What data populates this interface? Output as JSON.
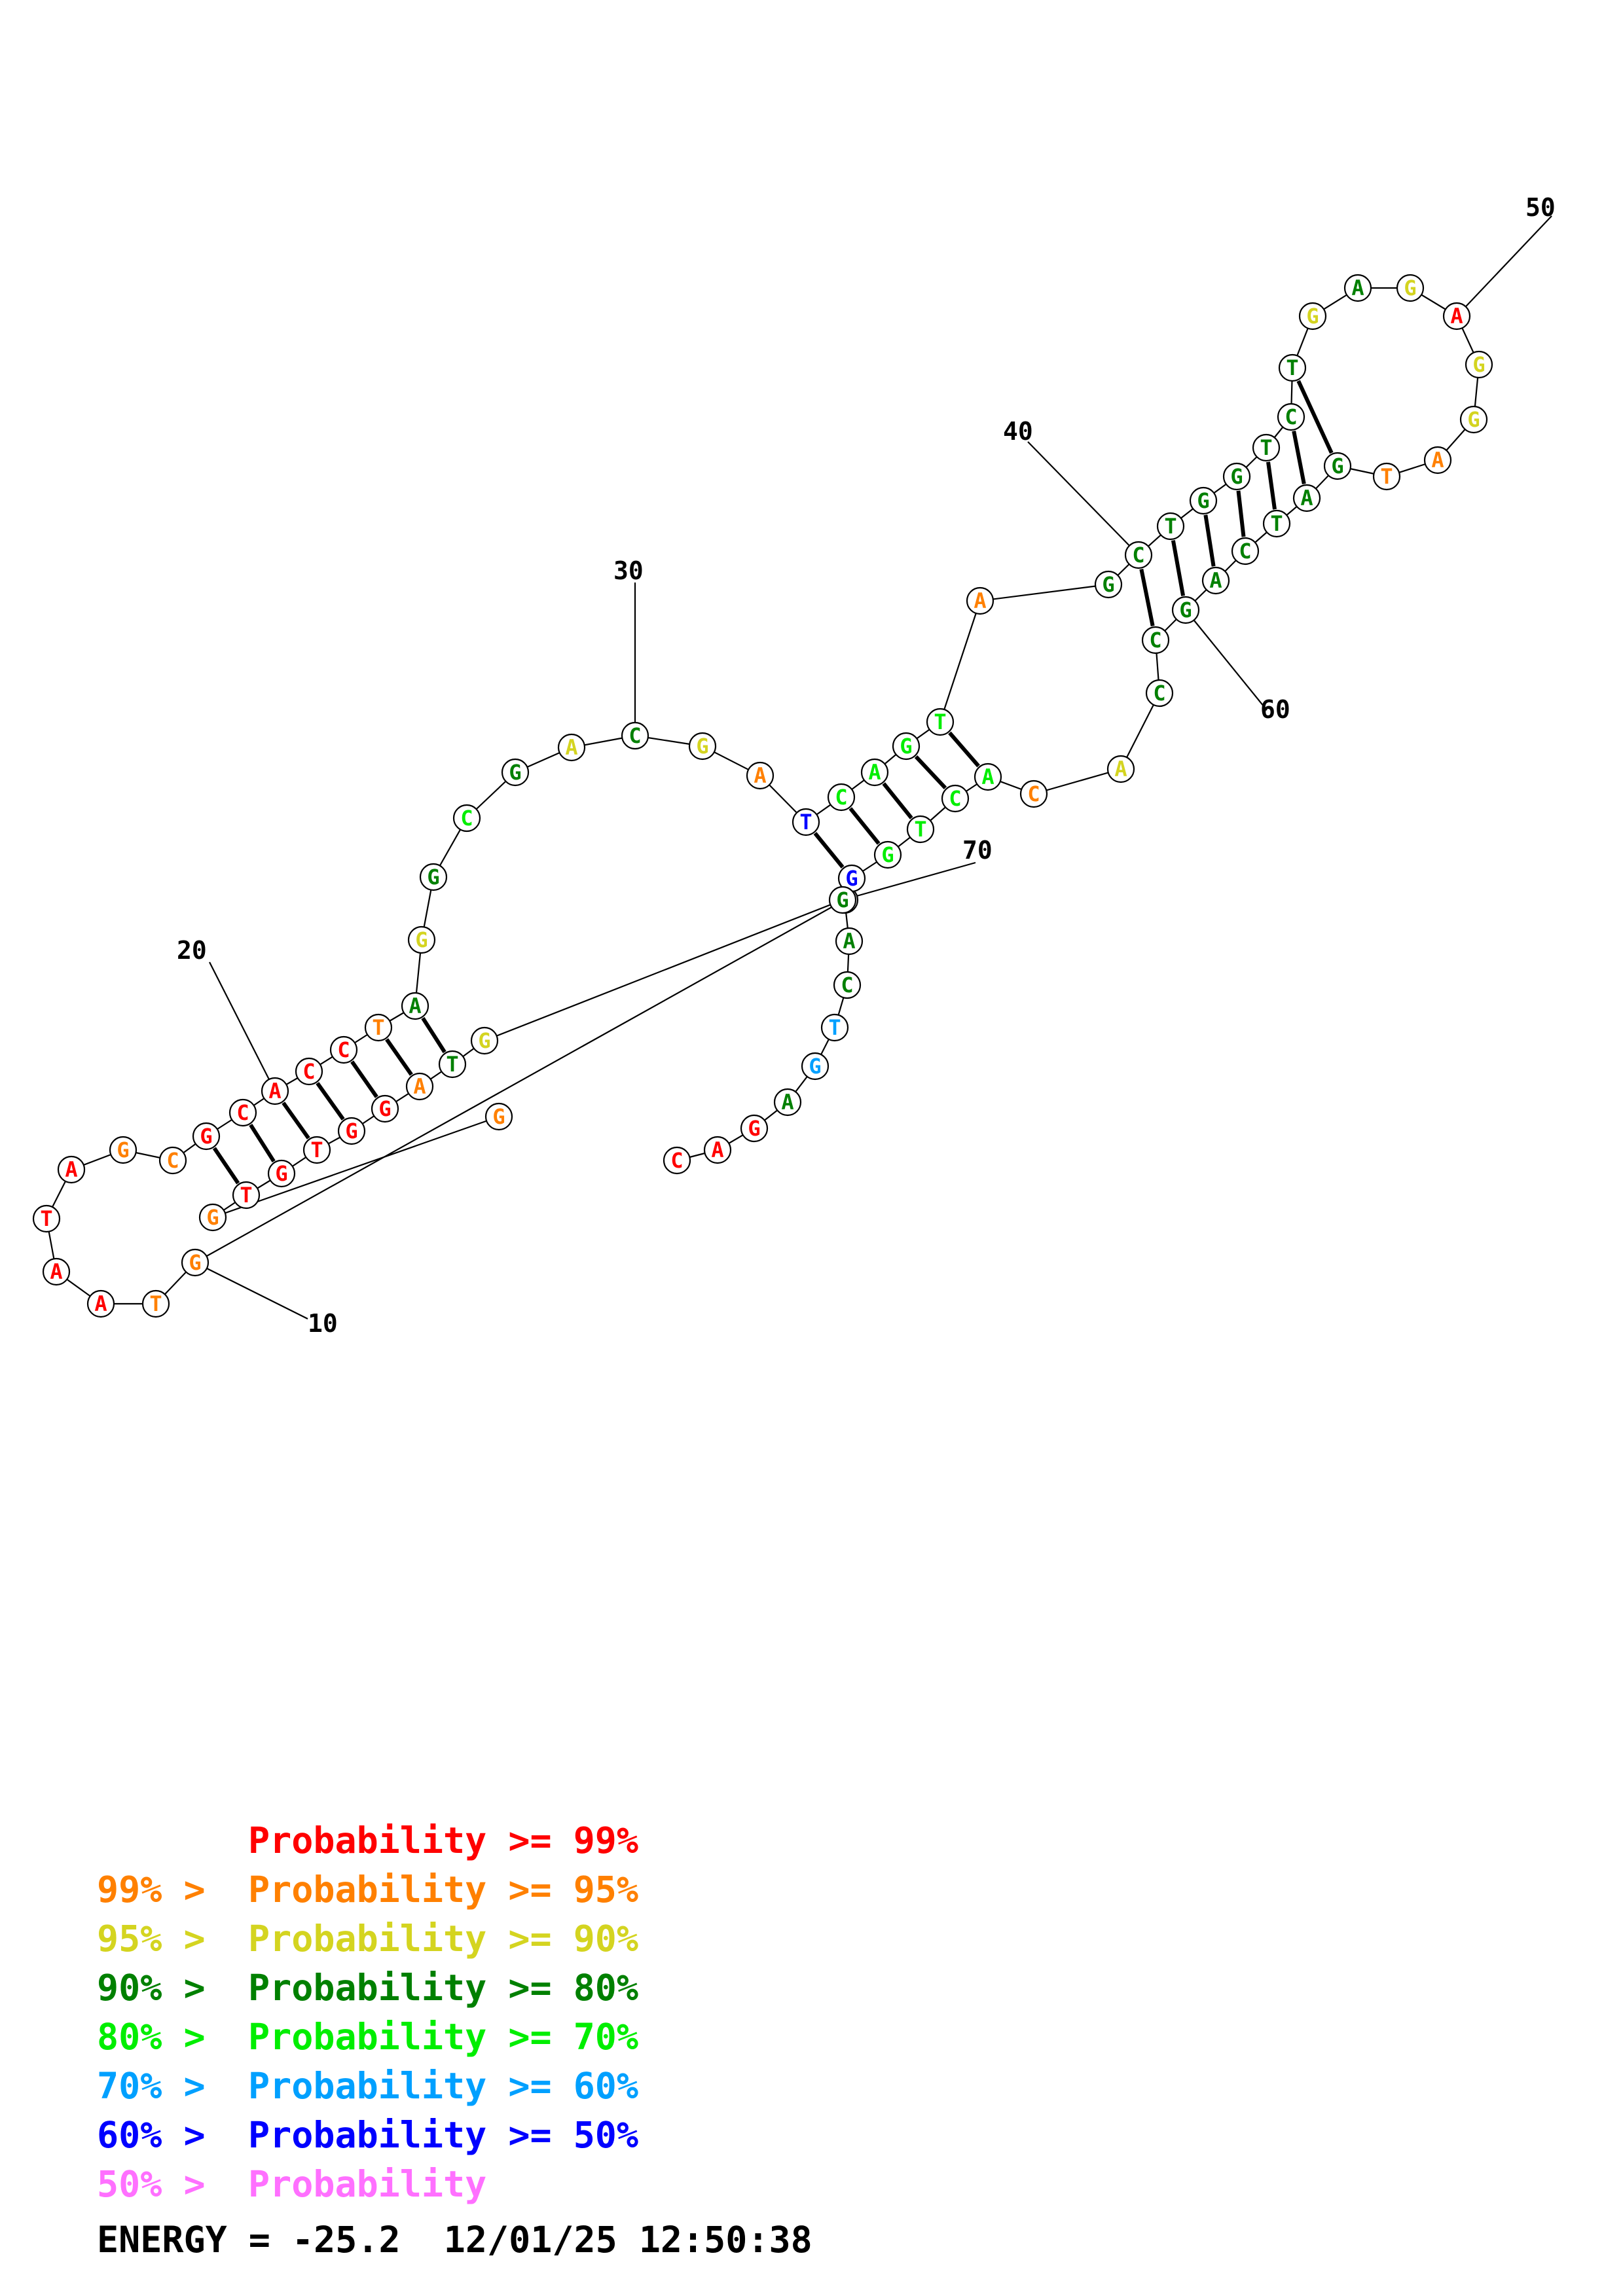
{
  "colors": {
    "p99": "#ff0000",
    "p95": "#ff8000",
    "p90": "#d4d420",
    "p80": "#008000",
    "p70": "#00ee00",
    "p60": "#00a0ff",
    "p50": "#0000ff",
    "plow": "#ff70ff"
  },
  "sequence": [
    {
      "n": 1,
      "base": "C",
      "p": "p99"
    },
    {
      "n": 2,
      "base": "A",
      "p": "p99"
    },
    {
      "n": 3,
      "base": "G",
      "p": "p99"
    },
    {
      "n": 4,
      "base": "A",
      "p": "p80"
    },
    {
      "n": 5,
      "base": "G",
      "p": "p60"
    },
    {
      "n": 6,
      "base": "T",
      "p": "p60"
    },
    {
      "n": 7,
      "base": "C",
      "p": "p80"
    },
    {
      "n": 8,
      "base": "A",
      "p": "p80"
    },
    {
      "n": 9,
      "base": "G",
      "p": "p80"
    },
    {
      "n": 10,
      "base": "G",
      "p": "p95"
    },
    {
      "n": 11,
      "base": "T",
      "p": "p95"
    },
    {
      "n": 12,
      "base": "A",
      "p": "p99"
    },
    {
      "n": 13,
      "base": "A",
      "p": "p99"
    },
    {
      "n": 14,
      "base": "T",
      "p": "p99"
    },
    {
      "n": 15,
      "base": "A",
      "p": "p99"
    },
    {
      "n": 16,
      "base": "G",
      "p": "p95"
    },
    {
      "n": 17,
      "base": "C",
      "p": "p95"
    },
    {
      "n": 18,
      "base": "G",
      "p": "p99"
    },
    {
      "n": 19,
      "base": "C",
      "p": "p99"
    },
    {
      "n": 20,
      "base": "A",
      "p": "p99"
    },
    {
      "n": 21,
      "base": "C",
      "p": "p99"
    },
    {
      "n": 22,
      "base": "C",
      "p": "p99"
    },
    {
      "n": 23,
      "base": "T",
      "p": "p95"
    },
    {
      "n": 24,
      "base": "A",
      "p": "p80"
    },
    {
      "n": 25,
      "base": "G",
      "p": "p90"
    },
    {
      "n": 26,
      "base": "G",
      "p": "p80"
    },
    {
      "n": 27,
      "base": "C",
      "p": "p70"
    },
    {
      "n": 28,
      "base": "G",
      "p": "p80"
    },
    {
      "n": 29,
      "base": "A",
      "p": "p90"
    },
    {
      "n": 30,
      "base": "C",
      "p": "p80"
    },
    {
      "n": 31,
      "base": "G",
      "p": "p90"
    },
    {
      "n": 32,
      "base": "A",
      "p": "p95"
    },
    {
      "n": 33,
      "base": "T",
      "p": "p50"
    },
    {
      "n": 34,
      "base": "C",
      "p": "p70"
    },
    {
      "n": 35,
      "base": "A",
      "p": "p70"
    },
    {
      "n": 36,
      "base": "G",
      "p": "p70"
    },
    {
      "n": 37,
      "base": "T",
      "p": "p70"
    },
    {
      "n": 38,
      "base": "A",
      "p": "p95"
    },
    {
      "n": 39,
      "base": "G",
      "p": "p80"
    },
    {
      "n": 40,
      "base": "C",
      "p": "p80"
    },
    {
      "n": 41,
      "base": "T",
      "p": "p80"
    },
    {
      "n": 42,
      "base": "G",
      "p": "p80"
    },
    {
      "n": 43,
      "base": "G",
      "p": "p80"
    },
    {
      "n": 44,
      "base": "T",
      "p": "p80"
    },
    {
      "n": 45,
      "base": "C",
      "p": "p80"
    },
    {
      "n": 46,
      "base": "T",
      "p": "p80"
    },
    {
      "n": 47,
      "base": "G",
      "p": "p90"
    },
    {
      "n": 48,
      "base": "A",
      "p": "p80"
    },
    {
      "n": 49,
      "base": "G",
      "p": "p90"
    },
    {
      "n": 50,
      "base": "A",
      "p": "p99"
    },
    {
      "n": 51,
      "base": "G",
      "p": "p90"
    },
    {
      "n": 52,
      "base": "G",
      "p": "p90"
    },
    {
      "n": 53,
      "base": "A",
      "p": "p95"
    },
    {
      "n": 54,
      "base": "T",
      "p": "p95"
    },
    {
      "n": 55,
      "base": "G",
      "p": "p80"
    },
    {
      "n": 56,
      "base": "A",
      "p": "p80"
    },
    {
      "n": 57,
      "base": "T",
      "p": "p80"
    },
    {
      "n": 58,
      "base": "C",
      "p": "p80"
    },
    {
      "n": 59,
      "base": "A",
      "p": "p80"
    },
    {
      "n": 60,
      "base": "G",
      "p": "p80"
    },
    {
      "n": 61,
      "base": "C",
      "p": "p80"
    },
    {
      "n": 62,
      "base": "C",
      "p": "p80"
    },
    {
      "n": 63,
      "base": "A",
      "p": "p90"
    },
    {
      "n": 64,
      "base": "C",
      "p": "p95"
    },
    {
      "n": 65,
      "base": "A",
      "p": "p70"
    },
    {
      "n": 66,
      "base": "C",
      "p": "p70"
    },
    {
      "n": 67,
      "base": "T",
      "p": "p70"
    },
    {
      "n": 68,
      "base": "G",
      "p": "p70"
    },
    {
      "n": 69,
      "base": "G",
      "p": "p50"
    },
    {
      "n": 70,
      "base": "G",
      "p": "p80"
    },
    {
      "n": 71,
      "base": "G",
      "p": "p90"
    },
    {
      "n": 72,
      "base": "T",
      "p": "p80"
    },
    {
      "n": 73,
      "base": "A",
      "p": "p95"
    },
    {
      "n": 74,
      "base": "G",
      "p": "p99"
    },
    {
      "n": 75,
      "base": "G",
      "p": "p99"
    },
    {
      "n": 76,
      "base": "T",
      "p": "p99"
    },
    {
      "n": 77,
      "base": "G",
      "p": "p99"
    },
    {
      "n": 78,
      "base": "T",
      "p": "p99"
    },
    {
      "n": 79,
      "base": "G",
      "p": "p95"
    },
    {
      "n": 80,
      "base": "G",
      "p": "p95"
    }
  ],
  "pairs": [
    [
      18,
      78
    ],
    [
      19,
      77
    ],
    [
      20,
      76
    ],
    [
      21,
      75
    ],
    [
      22,
      74
    ],
    [
      23,
      73
    ],
    [
      24,
      72
    ],
    [
      33,
      69
    ],
    [
      34,
      68
    ],
    [
      35,
      67
    ],
    [
      36,
      66
    ],
    [
      37,
      65
    ],
    [
      40,
      61
    ],
    [
      41,
      60
    ],
    [
      42,
      59
    ],
    [
      43,
      58
    ],
    [
      44,
      57
    ],
    [
      45,
      56
    ],
    [
      46,
      55
    ]
  ],
  "tick_labels": [
    {
      "n": 10,
      "label": "10"
    },
    {
      "n": 20,
      "label": "20"
    },
    {
      "n": 30,
      "label": "30"
    },
    {
      "n": 40,
      "label": "40"
    },
    {
      "n": 50,
      "label": "50"
    },
    {
      "n": 60,
      "label": "60"
    },
    {
      "n": 70,
      "label": "70"
    }
  ],
  "legend": [
    {
      "prefix": "",
      "label": "Probability >= 99%",
      "p": "p99"
    },
    {
      "prefix": "99% > ",
      "label": "Probability >= 95%",
      "p": "p95"
    },
    {
      "prefix": "95% > ",
      "label": "Probability >= 90%",
      "p": "p90"
    },
    {
      "prefix": "90% > ",
      "label": "Probability >= 80%",
      "p": "p80"
    },
    {
      "prefix": "80% > ",
      "label": "Probability >= 70%",
      "p": "p70"
    },
    {
      "prefix": "70% > ",
      "label": "Probability >= 60%",
      "p": "p60"
    },
    {
      "prefix": "60% > ",
      "label": "Probability >= 50%",
      "p": "p50"
    },
    {
      "prefix": "50% > ",
      "label": "Probability",
      "p": "plow"
    }
  ],
  "energy_line": "ENERGY = -25.2  12/01/25 12:50:38"
}
